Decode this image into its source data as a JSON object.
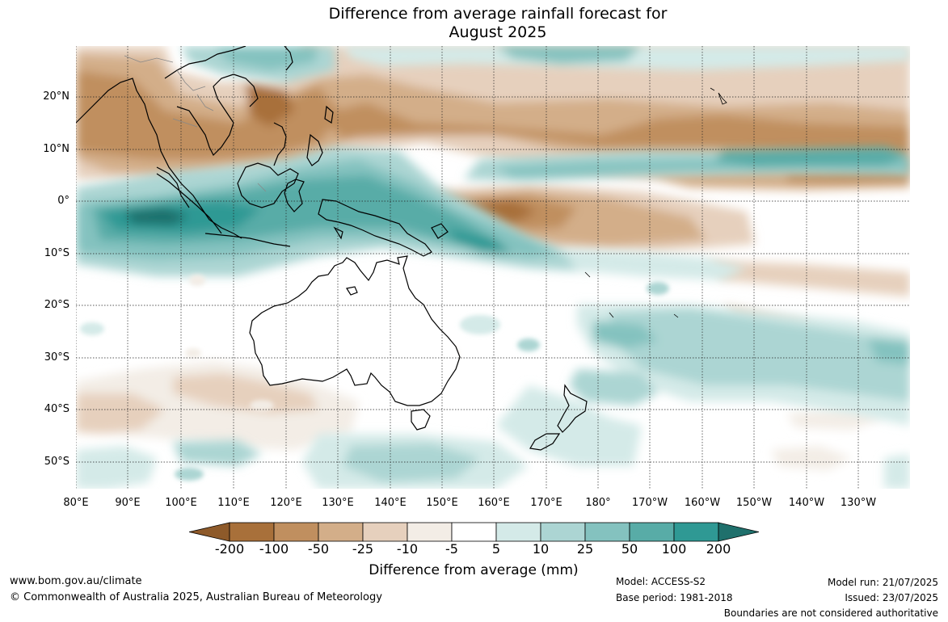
{
  "title": {
    "line1": "Difference from average rainfall forecast for",
    "line2": "August 2025"
  },
  "map": {
    "lat_labels": [
      "20°N",
      "10°N",
      "0°",
      "10°S",
      "20°S",
      "30°S",
      "40°S",
      "50°S"
    ],
    "lon_labels": [
      "80°E",
      "90°E",
      "100°E",
      "110°E",
      "120°E",
      "130°E",
      "140°E",
      "150°E",
      "160°E",
      "170°E",
      "180°",
      "170°W",
      "160°W",
      "150°W",
      "140°W",
      "130°W"
    ]
  },
  "legend": {
    "ticks": [
      "-200",
      "-100",
      "-50",
      "-25",
      "-10",
      "-5",
      "5",
      "10",
      "25",
      "50",
      "100",
      "200"
    ],
    "colors": [
      "#a8703a",
      "#c08f5f",
      "#d3ae89",
      "#e6d0bd",
      "#f3ede6",
      "#ffffff",
      "#d4eae8",
      "#acd5d3",
      "#84c2bf",
      "#58aca7",
      "#2f9994",
      "#1f706c"
    ],
    "title": "Difference from average (mm)"
  },
  "footer": {
    "website": "www.bom.gov.au/climate",
    "copyright": "© Commonwealth of Australia 2025, Australian Bureau of Meteorology",
    "model": "Model: ACCESS-S2",
    "base_period": "Base period: 1981-2018",
    "model_run": "Model run: 21/07/2025",
    "issued": "Issued: 23/07/2025",
    "disclaimer": "Boundaries are not considered authoritative"
  }
}
